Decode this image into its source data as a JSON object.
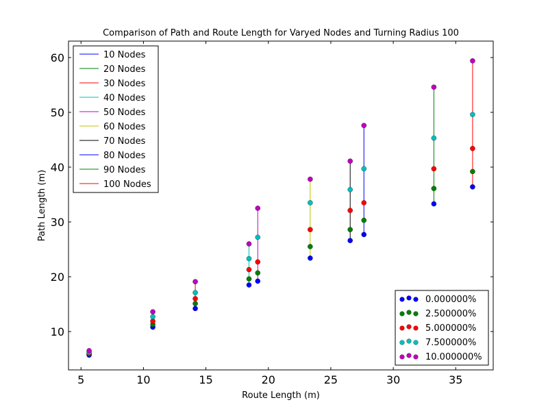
{
  "chart_data": {
    "type": "scatter",
    "title": "Comparison of Path and Route Length for Varyed Nodes and Turning Radius 100",
    "xlabel": "Route Length (m)",
    "ylabel": "Path Length (m)",
    "xlim": [
      4,
      38
    ],
    "ylim": [
      3,
      63
    ],
    "xticks": [
      5,
      10,
      15,
      20,
      25,
      30,
      35
    ],
    "yticks": [
      10,
      20,
      30,
      40,
      50,
      60
    ],
    "grid": false,
    "lines_legend_location": "upper-left",
    "points_legend_location": "lower-right",
    "lines": [
      {
        "name": "10 Nodes",
        "color": "#0000ff",
        "x": 5.65,
        "y_range": [
          5.7,
          6.5
        ]
      },
      {
        "name": "20 Nodes",
        "color": "#008000",
        "x": 10.75,
        "y_range": [
          10.8,
          13.6
        ]
      },
      {
        "name": "30 Nodes",
        "color": "#ff0000",
        "x": 14.15,
        "y_range": [
          14.2,
          19.1
        ]
      },
      {
        "name": "40 Nodes",
        "color": "#00bfbf",
        "x": 18.45,
        "y_range": [
          18.5,
          26.0
        ]
      },
      {
        "name": "50 Nodes",
        "color": "#bf00bf",
        "x": 19.15,
        "y_range": [
          19.2,
          32.5
        ]
      },
      {
        "name": "60 Nodes",
        "color": "#bfbf00",
        "x": 23.35,
        "y_range": [
          23.4,
          37.8
        ]
      },
      {
        "name": "70 Nodes",
        "color": "#000000",
        "x": 26.55,
        "y_range": [
          26.6,
          41.1
        ]
      },
      {
        "name": "80 Nodes",
        "color": "#0000ff",
        "x": 27.65,
        "y_range": [
          27.7,
          47.6
        ]
      },
      {
        "name": "90 Nodes",
        "color": "#008000",
        "x": 33.25,
        "y_range": [
          33.3,
          54.6
        ]
      },
      {
        "name": "100 Nodes",
        "color": "#ff0000",
        "x": 36.35,
        "y_range": [
          36.4,
          59.4
        ]
      }
    ],
    "series": [
      {
        "name": "0.000000%",
        "color": "#0000ff",
        "x": [
          5.65,
          10.75,
          14.15,
          18.45,
          19.15,
          23.35,
          26.55,
          27.65,
          33.25,
          36.35
        ],
        "y": [
          5.7,
          10.8,
          14.2,
          18.5,
          19.2,
          23.4,
          26.6,
          27.7,
          33.3,
          36.4
        ]
      },
      {
        "name": "2.500000%",
        "color": "#008000",
        "x": [
          5.65,
          10.75,
          14.15,
          18.45,
          19.15,
          23.35,
          26.55,
          27.65,
          33.25,
          36.35
        ],
        "y": [
          5.9,
          11.3,
          15.1,
          19.6,
          20.7,
          25.5,
          28.6,
          30.3,
          36.1,
          39.2
        ]
      },
      {
        "name": "5.000000%",
        "color": "#ff0000",
        "x": [
          5.65,
          10.75,
          14.15,
          18.45,
          19.15,
          23.35,
          26.55,
          27.65,
          33.25,
          36.35
        ],
        "y": [
          6.0,
          11.9,
          16.0,
          21.3,
          22.7,
          28.6,
          32.1,
          33.5,
          39.7,
          43.4
        ]
      },
      {
        "name": "7.500000%",
        "color": "#00bfbf",
        "x": [
          5.65,
          10.75,
          14.15,
          18.45,
          19.15,
          23.35,
          26.55,
          27.65,
          33.25,
          36.35
        ],
        "y": [
          6.2,
          12.7,
          17.1,
          23.3,
          27.2,
          33.5,
          35.9,
          39.7,
          45.3,
          49.6
        ]
      },
      {
        "name": "10.000000%",
        "color": "#bf00bf",
        "x": [
          5.65,
          10.75,
          14.15,
          18.45,
          19.15,
          23.35,
          26.55,
          27.65,
          33.25,
          36.35
        ],
        "y": [
          6.5,
          13.6,
          19.1,
          26.0,
          32.5,
          37.8,
          41.1,
          47.6,
          54.6,
          59.4
        ]
      }
    ]
  }
}
